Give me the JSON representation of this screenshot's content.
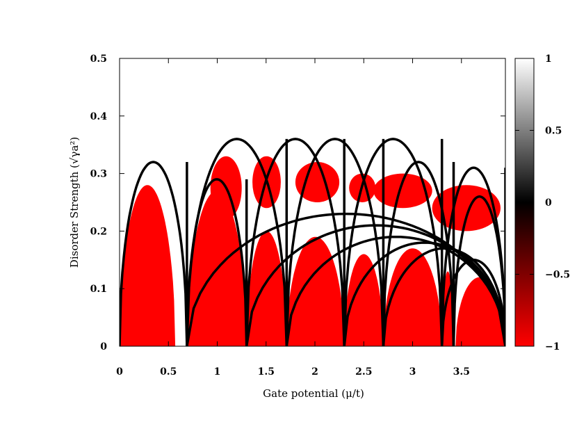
{
  "chart_data": {
    "type": "heatmap",
    "title": "",
    "xlabel": "Gate potential (μ/t)",
    "ylabel": "Disorder Strength (√γa²)",
    "xlim": [
      0,
      3.95
    ],
    "ylim": [
      0,
      0.5
    ],
    "x_ticks": [
      "0",
      "0.5",
      "1",
      "1.5",
      "2",
      "2.5",
      "3",
      "3.5"
    ],
    "x_tick_values": [
      0,
      0.5,
      1,
      1.5,
      2,
      2.5,
      3,
      3.5
    ],
    "y_ticks": [
      "0",
      "0.1",
      "0.2",
      "0.3",
      "0.4",
      "0.5"
    ],
    "y_tick_values": [
      0,
      0.1,
      0.2,
      0.3,
      0.4,
      0.5
    ],
    "colorbar": {
      "range": [
        -1,
        1
      ],
      "ticks": [
        "1",
        "0.5",
        "0",
        "−0.5",
        "−1"
      ],
      "tick_values": [
        1,
        0.5,
        0,
        -0.5,
        -1
      ],
      "colors": [
        "#ff0000",
        "#000000",
        "#ffffff"
      ]
    },
    "topological_regions": {
      "value": -1,
      "color": "#ff0000",
      "lobes": [
        {
          "x0": 0.0,
          "x1": 0.57,
          "peak": 0.28
        },
        {
          "x0": 0.69,
          "x1": 1.3,
          "peak": 0.27
        },
        {
          "x0": 1.3,
          "x1": 1.71,
          "peak": 0.2
        },
        {
          "x0": 1.71,
          "x1": 2.3,
          "peak": 0.19
        },
        {
          "x0": 2.3,
          "x1": 2.7,
          "peak": 0.16
        },
        {
          "x0": 2.7,
          "x1": 3.3,
          "peak": 0.17
        },
        {
          "x0": 3.3,
          "x1": 3.42,
          "peak": 0.13
        },
        {
          "x0": 3.44,
          "x1": 3.94,
          "peak": 0.12
        }
      ],
      "upper_patches": [
        {
          "x0": 0.93,
          "x1": 1.25,
          "y0": 0.22,
          "y1": 0.33
        },
        {
          "x0": 1.36,
          "x1": 1.65,
          "y0": 0.24,
          "y1": 0.33
        },
        {
          "x0": 1.8,
          "x1": 2.25,
          "y0": 0.25,
          "y1": 0.32
        },
        {
          "x0": 2.35,
          "x1": 2.62,
          "y0": 0.25,
          "y1": 0.3
        },
        {
          "x0": 2.6,
          "x1": 3.2,
          "y0": 0.24,
          "y1": 0.3
        },
        {
          "x0": 3.2,
          "x1": 3.9,
          "y0": 0.2,
          "y1": 0.28
        }
      ]
    },
    "phase_boundaries": {
      "color": "#000000",
      "domes": [
        {
          "x0": 0.0,
          "x1": 0.69,
          "ymax": 0.32
        },
        {
          "x0": 0.69,
          "x1": 1.3,
          "ymax": 0.29
        },
        {
          "x0": 0.69,
          "x1": 1.71,
          "ymax": 0.36
        },
        {
          "x0": 1.3,
          "x1": 2.3,
          "ymax": 0.36
        },
        {
          "x0": 1.71,
          "x1": 2.7,
          "ymax": 0.36
        },
        {
          "x0": 2.3,
          "x1": 3.3,
          "ymax": 0.36
        },
        {
          "x0": 2.7,
          "x1": 3.42,
          "ymax": 0.32
        },
        {
          "x0": 3.3,
          "x1": 3.95,
          "ymax": 0.31
        },
        {
          "x0": 3.42,
          "x1": 3.95,
          "ymax": 0.26
        },
        {
          "x0": 0.69,
          "x1": 3.95,
          "ymax": 0.23
        },
        {
          "x0": 1.3,
          "x1": 3.95,
          "ymax": 0.21
        },
        {
          "x0": 1.71,
          "x1": 3.95,
          "ymax": 0.19
        },
        {
          "x0": 2.3,
          "x1": 3.95,
          "ymax": 0.18
        },
        {
          "x0": 2.7,
          "x1": 3.95,
          "ymax": 0.17
        },
        {
          "x0": 3.3,
          "x1": 3.95,
          "ymax": 0.15
        }
      ],
      "verticals": [
        {
          "x": 0.69,
          "y1": 0.32
        },
        {
          "x": 1.3,
          "y1": 0.29
        },
        {
          "x": 1.71,
          "y1": 0.36
        },
        {
          "x": 2.3,
          "y1": 0.36
        },
        {
          "x": 2.7,
          "y1": 0.36
        },
        {
          "x": 3.3,
          "y1": 0.36
        },
        {
          "x": 3.42,
          "y1": 0.32
        },
        {
          "x": 3.95,
          "y1": 0.31
        }
      ]
    }
  }
}
